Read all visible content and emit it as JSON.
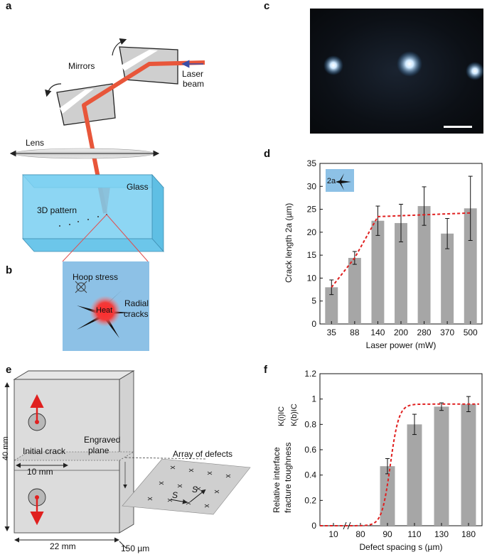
{
  "panels": {
    "a": {
      "letter": "a",
      "mirrors_label": "Mirrors",
      "laser_label_1": "Laser",
      "laser_label_2": "beam",
      "lens_label": "Lens",
      "glass_label": "Glass",
      "pattern_label": "3D pattern"
    },
    "b": {
      "letter": "b",
      "hoop_label": "Hoop stress",
      "heat_label": "Heat",
      "radial_label_1": "Radial",
      "radial_label_2": "cracks"
    },
    "c": {
      "letter": "c"
    },
    "d": {
      "letter": "d",
      "inset_label": "2a"
    },
    "e": {
      "letter": "e",
      "height_label": "40 mm",
      "initial_crack_label": "Initial crack",
      "crack_length_label": "10 mm",
      "engraved_label_1": "Engraved",
      "engraved_label_2": "plane",
      "array_label": "Array of defects",
      "width_label": "22 mm",
      "thickness_label": "150 µm",
      "spacing_label": "S"
    },
    "f": {
      "letter": "f"
    }
  },
  "colors": {
    "glass": "#7ad0f2",
    "laser": "#e8563a",
    "bar": "#a6a6a6",
    "fit": "#e02020",
    "defect_box": "#8dc1e6"
  },
  "chart_data": [
    {
      "id": "d",
      "type": "bar",
      "title": "",
      "xlabel": "Laser power (mW)",
      "ylabel": "Crack length 2a (µm)",
      "ylim": [
        0,
        35
      ],
      "yticks": [
        "0",
        "5",
        "10",
        "15",
        "20",
        "25",
        "30",
        "35"
      ],
      "categories": [
        "35",
        "88",
        "140",
        "200",
        "280",
        "370",
        "500"
      ],
      "values": [
        8.0,
        14.4,
        22.5,
        22.0,
        25.7,
        19.7,
        25.2
      ],
      "errors": [
        1.6,
        1.4,
        3.2,
        4.1,
        4.2,
        3.3,
        7.0
      ],
      "fit": [
        8.0,
        14.4,
        23.4,
        23.6,
        23.8,
        24.0,
        24.2
      ],
      "grid": false
    },
    {
      "id": "f",
      "type": "bar",
      "title": "",
      "xlabel": "Defect spacing s (µm)",
      "ylabel_1": "Relative interface",
      "ylabel_2": "fracture toughness",
      "ratio_num": "K(i)IC",
      "ratio_den": "K(b)IC",
      "ylim": [
        0,
        1.2
      ],
      "yticks": [
        "0",
        "0.2",
        "0.4",
        "0.6",
        "0.8",
        "1",
        "1.2"
      ],
      "categories": [
        "10",
        "80",
        "90",
        "110",
        "130",
        "180"
      ],
      "values": [
        0,
        0,
        0.47,
        0.8,
        0.94,
        0.96
      ],
      "errors": [
        0,
        0,
        0.06,
        0.08,
        0.03,
        0.06
      ],
      "axis_break": "between 10 and 80",
      "fit": "sigmoid",
      "grid": false
    }
  ]
}
